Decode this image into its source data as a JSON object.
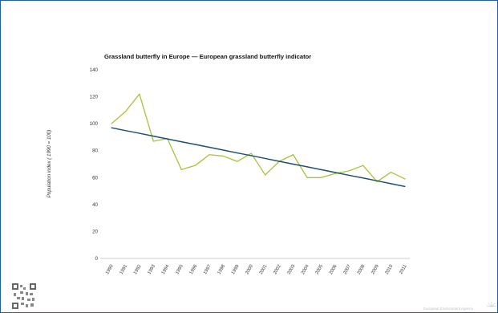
{
  "chart_data": {
    "type": "line",
    "title": "Grassland butterfly in Europe — European grassland butterfly indicator",
    "ylabel": "Population index ( 1990 = 100)",
    "xlabel": "",
    "ylim": [
      0,
      140
    ],
    "yticks": [
      0,
      20,
      40,
      60,
      80,
      100,
      120,
      140
    ],
    "x": [
      "1990",
      "1991",
      "1992",
      "1993",
      "1994",
      "1995",
      "1996",
      "1997",
      "1998",
      "1999",
      "2000",
      "2001",
      "2002",
      "2003",
      "2004",
      "2005",
      "2006",
      "2007",
      "2008",
      "2009",
      "2010",
      "2011"
    ],
    "series": [
      {
        "values": [
          100,
          109,
          122,
          87,
          89,
          66,
          69,
          77,
          76,
          72,
          78,
          62,
          72,
          77,
          60,
          60,
          63,
          65,
          69,
          57,
          64,
          59
        ],
        "color": "#a8c23a"
      },
      {
        "values": [
          97,
          94.9,
          92.9,
          90.8,
          88.7,
          86.6,
          84.6,
          82.5,
          80.4,
          78.3,
          76.3,
          74.2,
          72.1,
          70.0,
          68.0,
          65.9,
          63.8,
          61.7,
          59.7,
          57.6,
          55.5,
          53.4
        ],
        "color": "#1f4f72"
      }
    ],
    "grid": false,
    "legend": "none"
  },
  "footer": {
    "agency": "European Environment Agency"
  }
}
